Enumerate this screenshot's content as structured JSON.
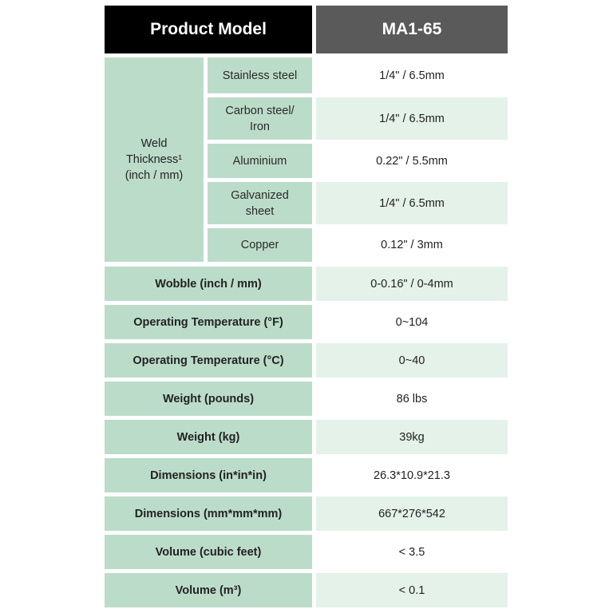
{
  "header": {
    "left": "Product Model",
    "right": "MA1-65"
  },
  "weld": {
    "group_label": "Weld\nThickness¹\n(inch / mm)",
    "rows": [
      {
        "label": "Stainless steel",
        "value": "1/4\" / 6.5mm"
      },
      {
        "label": "Carbon steel/\nIron",
        "value": "1/4\" / 6.5mm"
      },
      {
        "label": "Aluminium",
        "value": "0.22\" / 5.5mm"
      },
      {
        "label": "Galvanized\nsheet",
        "value": "1/4\" / 6.5mm"
      },
      {
        "label": "Copper",
        "value": "0.12\" / 3mm"
      }
    ]
  },
  "rows": [
    {
      "label": "Wobble (inch / mm)",
      "value": "0-0.16\" / 0-4mm"
    },
    {
      "label": "Operating Temperature (°F)",
      "value": "0~104"
    },
    {
      "label": "Operating Temperature (°C)",
      "value": "0~40"
    },
    {
      "label": "Weight (pounds)",
      "value": "86 lbs"
    },
    {
      "label": "Weight (kg)",
      "value": "39kg"
    },
    {
      "label": "Dimensions (in*in*in)",
      "value": "26.3*10.9*21.3"
    },
    {
      "label": "Dimensions (mm*mm*mm)",
      "value": "667*276*542"
    },
    {
      "label": "Volume (cubic feet)",
      "value": "< 3.5"
    },
    {
      "label": "Volume (m³)",
      "value": "< 0.1"
    }
  ]
}
